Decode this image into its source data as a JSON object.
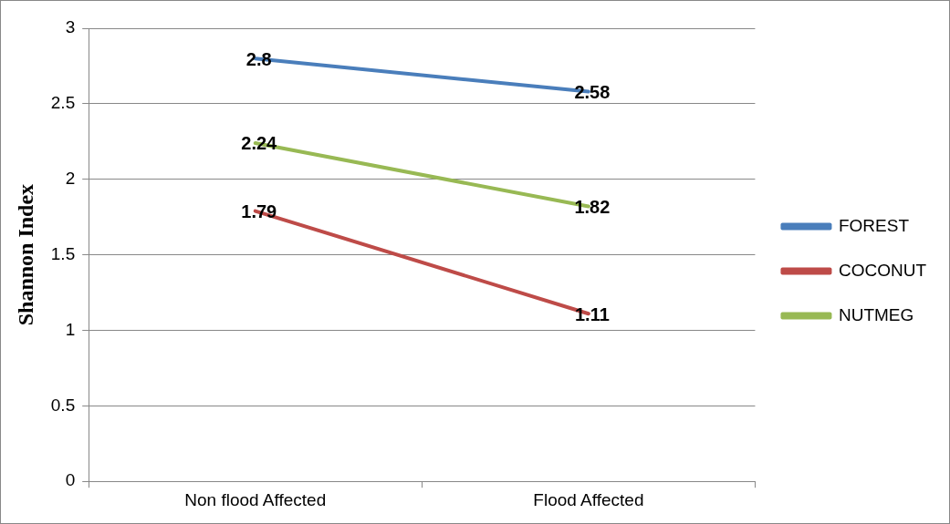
{
  "chart_data": {
    "type": "line",
    "ylabel": "Shannon Index",
    "categories": [
      "Non flood Affected",
      "Flood Affected"
    ],
    "series": [
      {
        "name": "FOREST",
        "color": "#4a7ebb",
        "values": [
          2.8,
          2.58
        ]
      },
      {
        "name": "COCONUT",
        "color": "#be4b48",
        "values": [
          1.79,
          1.11
        ]
      },
      {
        "name": "NUTMEG",
        "color": "#98b954",
        "values": [
          2.24,
          1.82
        ]
      }
    ],
    "ylim": [
      0,
      3
    ],
    "yticks": [
      0,
      0.5,
      1,
      1.5,
      2,
      2.5,
      3
    ],
    "grid": "y",
    "legend": "right",
    "data_labels": true,
    "marker": "none",
    "line_style": "solid"
  }
}
